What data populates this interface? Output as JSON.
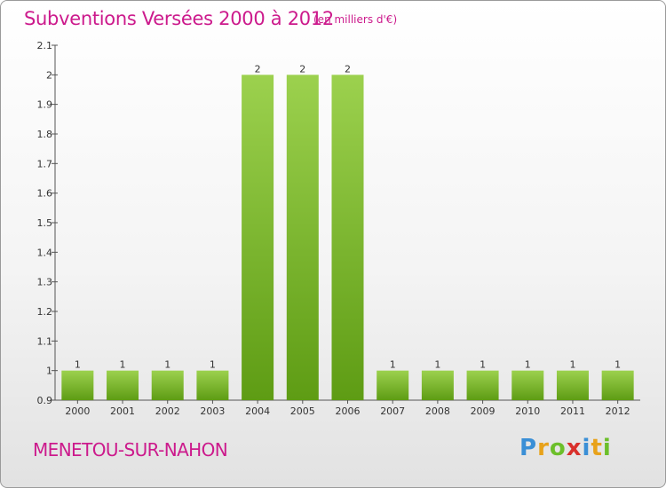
{
  "header": {
    "title": "Subventions Versées 2000 à 2012",
    "unit": "(en milliers d'€)"
  },
  "footer": {
    "commune": "MENETOU-SUR-NAHON"
  },
  "logo": {
    "text": "Proxiti",
    "letters": [
      {
        "char": "P",
        "color": "#3a8fd6"
      },
      {
        "char": "r",
        "color": "#e8a21a"
      },
      {
        "char": "o",
        "color": "#6cbf2a"
      },
      {
        "char": "x",
        "color": "#d9302b"
      },
      {
        "char": "i",
        "color": "#3a8fd6"
      },
      {
        "char": "t",
        "color": "#e8a21a"
      },
      {
        "char": "i",
        "color": "#6cbf2a"
      }
    ]
  },
  "colors": {
    "accent": "#cc1a8c",
    "bar_top": "#9cd14e",
    "bar_bottom": "#5e9c14"
  },
  "chart_data": {
    "type": "bar",
    "title": "Subventions Versées 2000 à 2012",
    "ylim": [
      0.9,
      2.1
    ],
    "yticks": [
      "0.9",
      "1",
      "1.1",
      "1.2",
      "1.3",
      "1.4",
      "1.5",
      "1.6",
      "1.7",
      "1.8",
      "1.9",
      "2",
      "2.1"
    ],
    "categories": [
      "2000",
      "2001",
      "2002",
      "2003",
      "2004",
      "2005",
      "2006",
      "2007",
      "2008",
      "2009",
      "2010",
      "2011",
      "2012"
    ],
    "values": [
      1,
      1,
      1,
      1,
      2,
      2,
      2,
      1,
      1,
      1,
      1,
      1,
      1
    ],
    "data_labels": [
      "1",
      "1",
      "1",
      "1",
      "2",
      "2",
      "2",
      "1",
      "1",
      "1",
      "1",
      "1",
      "1"
    ],
    "grid": false,
    "legend": "none"
  }
}
